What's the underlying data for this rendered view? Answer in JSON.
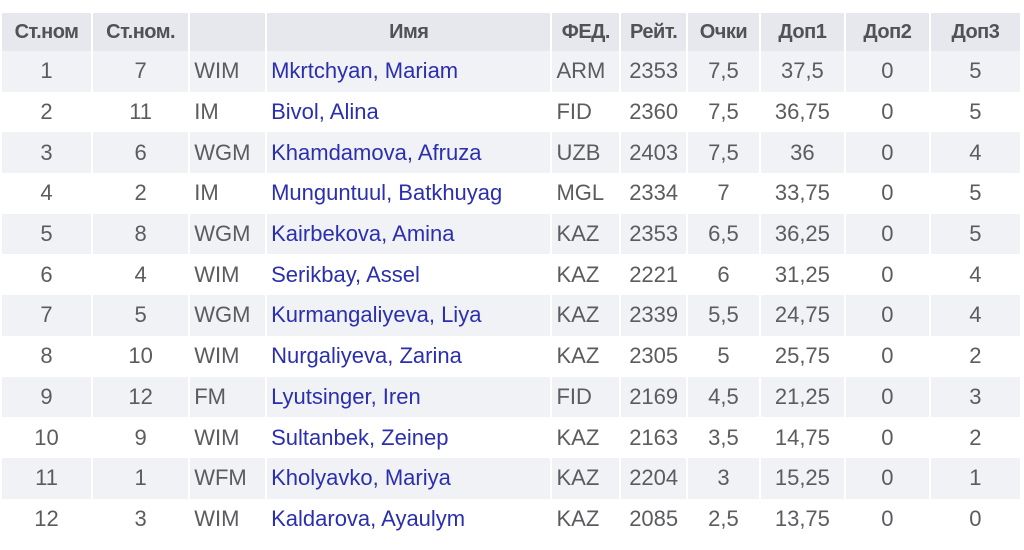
{
  "table": {
    "headers": [
      "Ст.ном",
      "Ст.ном.",
      "",
      "Имя",
      "ФЕД.",
      "Рейт.",
      "Очки",
      "Доп1",
      "Доп2",
      "Доп3"
    ],
    "rows": [
      [
        "1",
        "7",
        "WIM",
        "Mkrtchyan, Mariam",
        "ARM",
        "2353",
        "7,5",
        "37,5",
        "0",
        "5"
      ],
      [
        "2",
        "11",
        "IM",
        "Bivol, Alina",
        "FID",
        "2360",
        "7,5",
        "36,75",
        "0",
        "5"
      ],
      [
        "3",
        "6",
        "WGM",
        "Khamdamova, Afruza",
        "UZB",
        "2403",
        "7,5",
        "36",
        "0",
        "4"
      ],
      [
        "4",
        "2",
        "IM",
        "Munguntuul, Batkhuyag",
        "MGL",
        "2334",
        "7",
        "33,75",
        "0",
        "5"
      ],
      [
        "5",
        "8",
        "WGM",
        "Kairbekova, Amina",
        "KAZ",
        "2353",
        "6,5",
        "36,25",
        "0",
        "5"
      ],
      [
        "6",
        "4",
        "WIM",
        "Serikbay, Assel",
        "KAZ",
        "2221",
        "6",
        "31,25",
        "0",
        "4"
      ],
      [
        "7",
        "5",
        "WGM",
        "Kurmangaliyeva, Liya",
        "KAZ",
        "2339",
        "5,5",
        "24,75",
        "0",
        "4"
      ],
      [
        "8",
        "10",
        "WIM",
        "Nurgaliyeva, Zarina",
        "KAZ",
        "2305",
        "5",
        "25,75",
        "0",
        "2"
      ],
      [
        "9",
        "12",
        "FM",
        "Lyutsinger, Iren",
        "FID",
        "2169",
        "4,5",
        "21,25",
        "0",
        "3"
      ],
      [
        "10",
        "9",
        "WIM",
        "Sultanbek, Zeinep",
        "KAZ",
        "2163",
        "3,5",
        "14,75",
        "0",
        "2"
      ],
      [
        "11",
        "1",
        "WFM",
        "Kholyavko, Mariya",
        "KAZ",
        "2204",
        "3",
        "15,25",
        "0",
        "1"
      ],
      [
        "12",
        "3",
        "WIM",
        "Kaldarova, Ayaulym",
        "KAZ",
        "2085",
        "2,5",
        "13,75",
        "0",
        "0"
      ]
    ]
  },
  "colors": {
    "header_bg": "#e6e8ed",
    "odd_row_bg": "#f1f2f6",
    "link": "#2b2fae",
    "text": "#5a5c60"
  }
}
